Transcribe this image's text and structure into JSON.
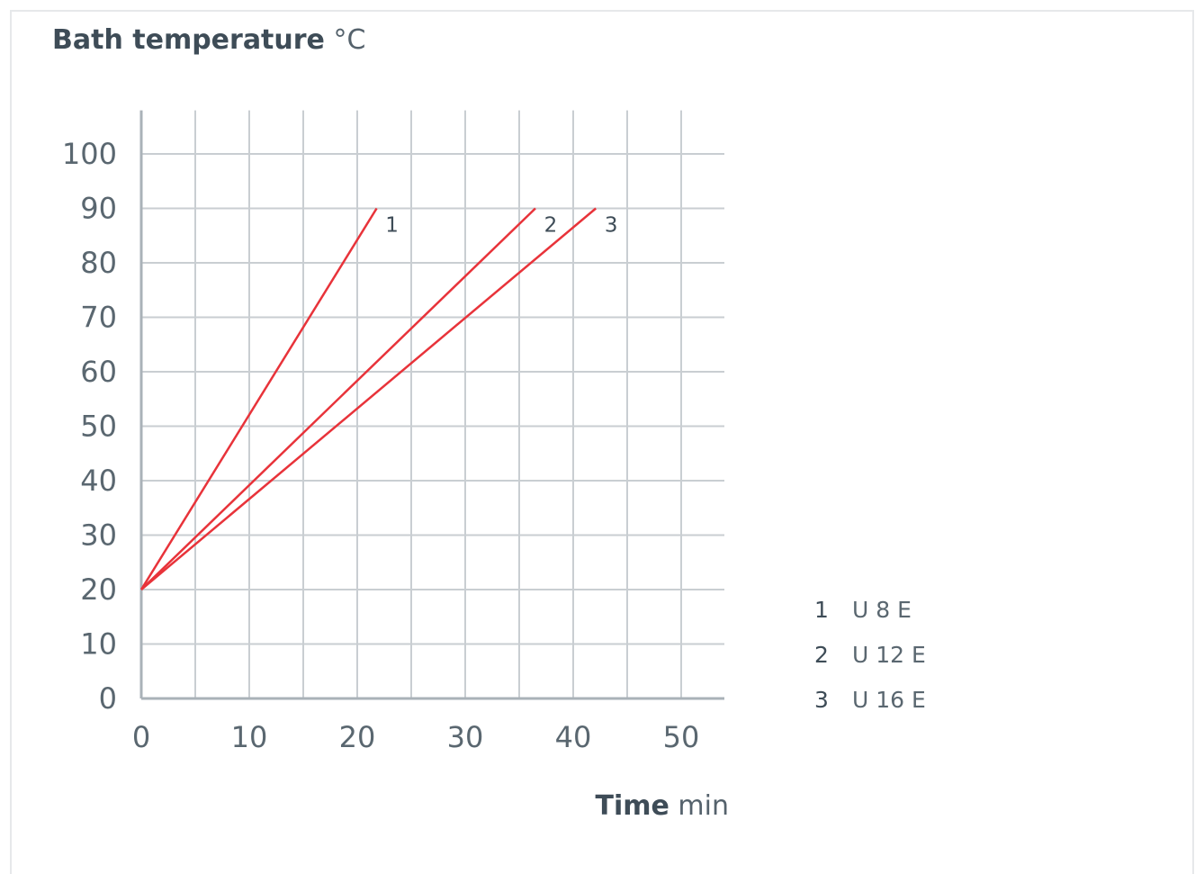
{
  "chart_data": {
    "type": "line",
    "ylabel": "Bath temperature",
    "yunit": "°C",
    "xlabel": "Time",
    "xunit": "min",
    "xlim": [
      0,
      54
    ],
    "ylim": [
      0,
      108
    ],
    "x_ticks": [
      0,
      10,
      20,
      30,
      40,
      50
    ],
    "y_ticks": [
      0,
      10,
      20,
      30,
      40,
      50,
      60,
      70,
      80,
      90,
      100
    ],
    "grid": true,
    "line_color": "#e8333a",
    "series": [
      {
        "name": "1",
        "model": "U 8 E",
        "x": [
          0,
          21.8
        ],
        "y": [
          20,
          90
        ]
      },
      {
        "name": "2",
        "model": "U 12 E",
        "x": [
          0,
          36.5
        ],
        "y": [
          20,
          90
        ]
      },
      {
        "name": "3",
        "model": "U 16 E",
        "x": [
          0,
          42.1
        ],
        "y": [
          20,
          90
        ]
      }
    ],
    "legend_position": "right"
  }
}
